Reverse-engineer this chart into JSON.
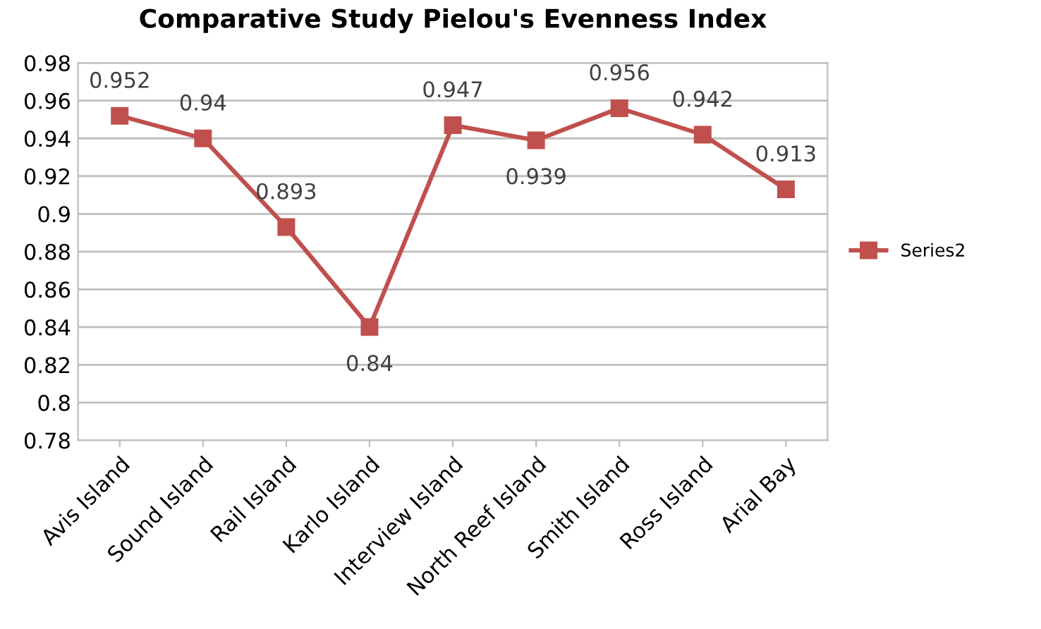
{
  "chart_data": {
    "type": "line",
    "title": "Comparative Study Pielou's Evenness Index",
    "categories": [
      "Avis Island",
      "Sound Island",
      "Rail Island",
      "Karlo Island",
      "Interview Island",
      "North Reef Island",
      "Smith Island",
      "Ross Island",
      "Arial Bay"
    ],
    "series": [
      {
        "name": "Series2",
        "color": "#c0504d",
        "values": [
          0.952,
          0.94,
          0.893,
          0.84,
          0.947,
          0.939,
          0.956,
          0.942,
          0.913
        ]
      }
    ],
    "ylim": [
      0.78,
      0.98
    ],
    "yticks": [
      0.78,
      0.8,
      0.82,
      0.84,
      0.86,
      0.88,
      0.9,
      0.92,
      0.94,
      0.96,
      0.98
    ],
    "grid": "y",
    "legend": "right",
    "marker": "square",
    "line_style": "solid",
    "data_labels": true
  }
}
